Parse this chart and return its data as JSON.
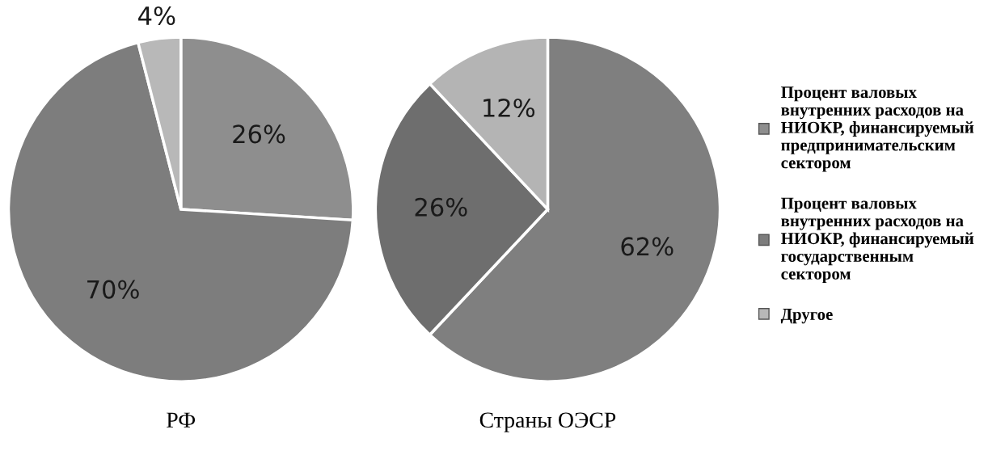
{
  "chart_data": [
    {
      "type": "pie",
      "title": "РФ",
      "categories": [
        "Процент валовых внутренних расходов на НИОКР, финансируемый предпринимательским сектором",
        "Процент валовых внутренних расходов на НИОКР, финансируемый государственным сектором",
        "Другое"
      ],
      "values": [
        26,
        70,
        4
      ],
      "value_labels": [
        "26%",
        "70%",
        "4%"
      ],
      "colors": [
        "#8e8e8e",
        "#7d7d7d",
        "#b8b8b8"
      ],
      "legend": "right"
    },
    {
      "type": "pie",
      "title": "Страны ОЭСР",
      "categories": [
        null,
        null,
        null
      ],
      "values": [
        62,
        26,
        12
      ],
      "value_labels": [
        "62%",
        "26%",
        "12%"
      ],
      "colors": [
        "#7f7f7f",
        "#6e6e6e",
        "#b4b4b4"
      ]
    }
  ]
}
